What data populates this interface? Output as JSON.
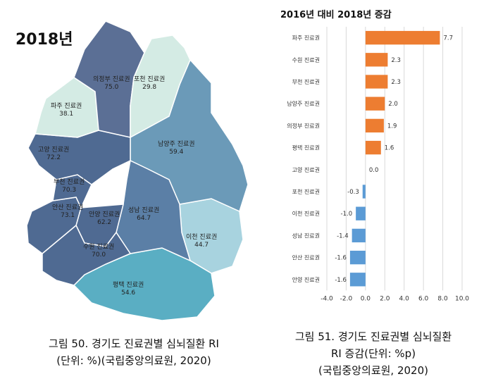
{
  "map": {
    "title": "2018년",
    "colors": {
      "dark": "#5b6f95",
      "mid": "#6b9ab8",
      "light": "#d4ebe4",
      "teal": "#5aaec3",
      "paleteal": "#a8d3df"
    },
    "regions": [
      {
        "name": "의정부 진료권",
        "value": "75.0"
      },
      {
        "name": "포천 진료권",
        "value": "29.8"
      },
      {
        "name": "파주 진료권",
        "value": "38.1"
      },
      {
        "name": "남양주 진료권",
        "value": "59.4"
      },
      {
        "name": "고양 진료권",
        "value": "72.2"
      },
      {
        "name": "부천 진료권",
        "value": "70.3"
      },
      {
        "name": "안산 진료권",
        "value": "73.1"
      },
      {
        "name": "안양 진료권",
        "value": "62.2"
      },
      {
        "name": "성남 진료권",
        "value": "64.7"
      },
      {
        "name": "이천 진료권",
        "value": "44.7"
      },
      {
        "name": "수원 진료권",
        "value": "70.0"
      },
      {
        "name": "평택 진료권",
        "value": "54.6"
      }
    ]
  },
  "chart_data": {
    "type": "bar",
    "orientation": "horizontal",
    "title": "2016년 대비 2018년 증감",
    "categories": [
      "파주 진료권",
      "수원 진료권",
      "부천 진료권",
      "남양주 진료권",
      "의정부 진료권",
      "평택 진료권",
      "고양 진료권",
      "포천 진료권",
      "이천 진료권",
      "성남 진료권",
      "안산 진료권",
      "안양 진료권"
    ],
    "values": [
      7.7,
      2.3,
      2.3,
      2.0,
      1.9,
      1.6,
      0.0,
      -0.3,
      -1.0,
      -1.4,
      -1.6,
      -1.6
    ],
    "value_labels": [
      "7.7",
      "2.3",
      "2.3",
      "2.0",
      "1.9",
      "1.6",
      "0.0",
      "-0.3",
      "-1.0",
      "-1.4",
      "-1.6",
      "-1.6"
    ],
    "xlim": [
      -4.0,
      10.0
    ],
    "xticks": [
      -4.0,
      -2.0,
      0.0,
      2.0,
      4.0,
      6.0,
      8.0,
      10.0
    ],
    "xtick_labels": [
      "-4.0",
      "-2.0",
      "0.0",
      "2.0",
      "4.0",
      "6.0",
      "8.0",
      "10.0"
    ],
    "grid": true,
    "colors": {
      "positive": "#ed7d31",
      "negative": "#5b9bd5",
      "grid": "#d9d9d9"
    }
  },
  "captions": {
    "left_line1": "그림 50. 경기도 진료권별 심뇌질환 RI",
    "left_line2": "(단위: %)(국립중앙의료원, 2020)",
    "right_line1": "그림 51. 경기도 진료권별 심뇌질환",
    "right_line2": "RI 증감(단위: %p)",
    "right_line3": "(국립중앙의료원, 2020)"
  }
}
